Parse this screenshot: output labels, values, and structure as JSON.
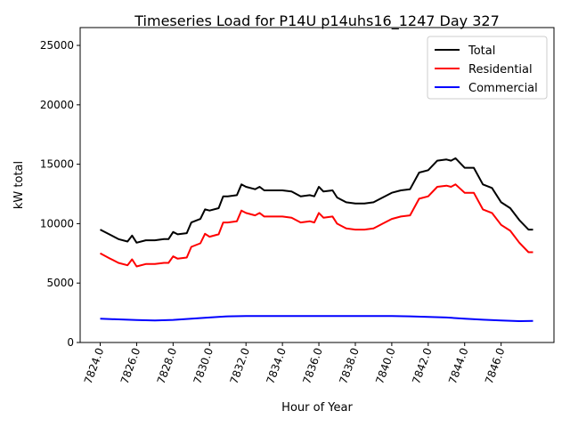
{
  "chart_data": {
    "type": "line",
    "title": "Timeseries Load for P14U p14uhs16_1247  Day 327",
    "xlabel": "Hour of Year",
    "ylabel": "kW total",
    "xlim": [
      7822.9,
      7848.9
    ],
    "ylim": [
      0,
      26500
    ],
    "xticks": [
      7824,
      7826,
      7828,
      7830,
      7832,
      7834,
      7836,
      7838,
      7840,
      7842,
      7844,
      7846
    ],
    "xtick_labels": [
      "7824.0",
      "7826.0",
      "7828.0",
      "7830.0",
      "7832.0",
      "7834.0",
      "7836.0",
      "7838.0",
      "7840.0",
      "7842.0",
      "7844.0",
      "7846.0"
    ],
    "yticks": [
      0,
      5000,
      10000,
      15000,
      20000,
      25000
    ],
    "ytick_labels": [
      "0",
      "5000",
      "10000",
      "15000",
      "20000",
      "25000"
    ],
    "grid": false,
    "legend_position": "top-right",
    "x": [
      7824,
      7824.5,
      7825,
      7825.5,
      7825.75,
      7826,
      7826.5,
      7827,
      7827.5,
      7827.75,
      7828,
      7828.25,
      7828.75,
      7829,
      7829.5,
      7829.75,
      7830,
      7830.5,
      7830.75,
      7831,
      7831.5,
      7831.75,
      7832,
      7832.5,
      7832.75,
      7833,
      7833.5,
      7834,
      7834.5,
      7835,
      7835.5,
      7835.75,
      7836,
      7836.25,
      7836.75,
      7837,
      7837.5,
      7838,
      7838.5,
      7839,
      7839.5,
      7840,
      7840.5,
      7841,
      7841.5,
      7842,
      7842.5,
      7843,
      7843.25,
      7843.5,
      7844,
      7844.5,
      7845,
      7845.5,
      7846,
      7846.5,
      7847,
      7847.5,
      7847.75
    ],
    "series": [
      {
        "name": "Total",
        "color": "#000000",
        "values": [
          9500,
          9100,
          8700,
          8500,
          9000,
          8400,
          8600,
          8600,
          8700,
          8700,
          9300,
          9100,
          9200,
          10100,
          10400,
          11200,
          11100,
          11300,
          12300,
          12300,
          12400,
          13300,
          13100,
          12900,
          13100,
          12800,
          12800,
          12800,
          12700,
          12300,
          12400,
          12300,
          13100,
          12700,
          12800,
          12200,
          11800,
          11700,
          11700,
          11800,
          12200,
          12600,
          12800,
          12900,
          14300,
          14500,
          15300,
          15400,
          15300,
          15500,
          14700,
          14700,
          13300,
          13000,
          11800,
          11300,
          10300,
          9500,
          9500
        ]
      },
      {
        "name": "Residential",
        "color": "#ff0000",
        "values": [
          7500,
          7100,
          6700,
          6500,
          7000,
          6400,
          6600,
          6600,
          6700,
          6700,
          7250,
          7050,
          7150,
          8050,
          8350,
          9150,
          8900,
          9100,
          10100,
          10100,
          10200,
          11100,
          10900,
          10700,
          10900,
          10600,
          10600,
          10600,
          10500,
          10100,
          10200,
          10100,
          10900,
          10500,
          10600,
          10000,
          9600,
          9500,
          9500,
          9600,
          10000,
          10400,
          10600,
          10700,
          12100,
          12300,
          13100,
          13200,
          13100,
          13300,
          12600,
          12600,
          11200,
          10900,
          9900,
          9400,
          8400,
          7600,
          7600
        ]
      },
      {
        "name": "Commercial",
        "color": "#0000ff",
        "x": [
          7824,
          7825,
          7826,
          7827,
          7828,
          7829,
          7830,
          7831,
          7832,
          7834,
          7836,
          7838,
          7840,
          7841,
          7842,
          7843,
          7844,
          7845,
          7846,
          7847,
          7847.75
        ],
        "values": [
          2000,
          1950,
          1890,
          1850,
          1900,
          2000,
          2100,
          2200,
          2230,
          2230,
          2230,
          2230,
          2220,
          2200,
          2150,
          2100,
          2000,
          1920,
          1850,
          1800,
          1820
        ]
      }
    ]
  }
}
